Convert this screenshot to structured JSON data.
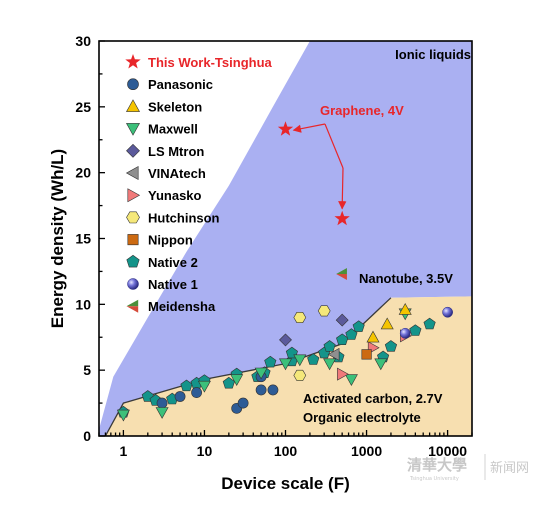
{
  "chart_data": {
    "type": "scatter",
    "xscale": "log",
    "xlim": [
      0.5,
      20000
    ],
    "ylim": [
      0,
      30
    ],
    "xlabel": "Device scale (F)",
    "ylabel": "Energy density (Wh/L)",
    "x_ticks": [
      {
        "value": 1,
        "label": "1"
      },
      {
        "value": 10,
        "label": "10"
      },
      {
        "value": 100,
        "label": "100"
      },
      {
        "value": 1000,
        "label": "1000"
      },
      {
        "value": 10000,
        "label": "10000"
      }
    ],
    "y_ticks": [
      0,
      5,
      10,
      15,
      20,
      25,
      30
    ],
    "regions": [
      {
        "name": "Ionic liquids",
        "color": "#aab0f2",
        "points": [
          [
            0.5,
            0
          ],
          [
            0.5,
            0.5
          ],
          [
            0.75,
            4.5
          ],
          [
            2,
            9
          ],
          [
            6,
            14
          ],
          [
            20,
            19
          ],
          [
            70,
            25
          ],
          [
            200,
            30
          ],
          [
            20000,
            30
          ],
          [
            20000,
            10.6
          ],
          [
            2000,
            10.5
          ],
          [
            500,
            7
          ],
          [
            100,
            5.5
          ],
          [
            10,
            4.3
          ],
          [
            1,
            2.5
          ],
          [
            0.6,
            0
          ]
        ]
      },
      {
        "name": "Activated carbon",
        "color": "#f7dfb0",
        "points": [
          [
            0.6,
            0
          ],
          [
            1,
            2.5
          ],
          [
            10,
            4.3
          ],
          [
            100,
            5.5
          ],
          [
            500,
            7
          ],
          [
            2000,
            10.5
          ],
          [
            20000,
            10.6
          ],
          [
            20000,
            0
          ]
        ]
      }
    ],
    "series": [
      {
        "name": "This Work-Tsinghua",
        "marker": "star",
        "color": "#e8262a",
        "points": [
          [
            100,
            23.3
          ],
          [
            500,
            16.5
          ]
        ]
      },
      {
        "name": "Panasonic",
        "marker": "circle",
        "color": "#2e5c96",
        "points": [
          [
            3,
            2.5
          ],
          [
            5,
            3
          ],
          [
            8,
            3.3
          ],
          [
            25,
            2.1
          ],
          [
            30,
            2.5
          ],
          [
            50,
            3.5
          ],
          [
            50,
            4.5
          ],
          [
            70,
            3.5
          ]
        ]
      },
      {
        "name": "Skeleton",
        "marker": "triangle-up",
        "color": "#f5c400",
        "points": [
          [
            1200,
            7.5
          ],
          [
            1800,
            8.5
          ],
          [
            3000,
            9.6
          ]
        ]
      },
      {
        "name": "Maxwell",
        "marker": "triangle-down",
        "color": "#3cc07a",
        "points": [
          [
            1,
            1.6
          ],
          [
            3,
            1.8
          ],
          [
            10,
            3.8
          ],
          [
            25,
            4.3
          ],
          [
            50,
            4.8
          ],
          [
            100,
            5.5
          ],
          [
            150,
            5.8
          ],
          [
            350,
            5.5
          ],
          [
            650,
            4.3
          ],
          [
            1500,
            5.5
          ],
          [
            3000,
            9.3
          ]
        ]
      },
      {
        "name": "LS Mtron",
        "marker": "diamond",
        "color": "#5b5a9b",
        "points": [
          [
            100,
            7.3
          ],
          [
            500,
            8.8
          ]
        ]
      },
      {
        "name": "VINAtech",
        "marker": "triangle-left",
        "color": "#8f8f8f",
        "points": [
          [
            400,
            6.2
          ]
        ]
      },
      {
        "name": "Yunasko",
        "marker": "triangle-right",
        "color": "#f07a7a",
        "points": [
          [
            500,
            4.7
          ],
          [
            1200,
            6.7
          ],
          [
            3000,
            7.6
          ]
        ]
      },
      {
        "name": "Hutchinson",
        "marker": "hexagon",
        "color": "#f5e87a",
        "points": [
          [
            150,
            4.6
          ],
          [
            150,
            9
          ],
          [
            300,
            9.5
          ]
        ]
      },
      {
        "name": "Nippon",
        "marker": "square",
        "color": "#cc6a12",
        "points": [
          [
            1000,
            6.2
          ]
        ]
      },
      {
        "name": "Native 2",
        "marker": "pentagon",
        "color": "#14948a",
        "points": [
          [
            1,
            1.8
          ],
          [
            2,
            3
          ],
          [
            2.5,
            2.7
          ],
          [
            4,
            2.8
          ],
          [
            6,
            3.8
          ],
          [
            8,
            4
          ],
          [
            10,
            4.2
          ],
          [
            20,
            4
          ],
          [
            25,
            4.7
          ],
          [
            45,
            4.5
          ],
          [
            55,
            4.8
          ],
          [
            65,
            5.6
          ],
          [
            120,
            5.7
          ],
          [
            120,
            6.3
          ],
          [
            220,
            5.8
          ],
          [
            300,
            6.3
          ],
          [
            350,
            6.8
          ],
          [
            450,
            6
          ],
          [
            500,
            7.3
          ],
          [
            650,
            7.7
          ],
          [
            800,
            8.3
          ],
          [
            1600,
            6
          ],
          [
            2000,
            6.8
          ],
          [
            4000,
            8
          ],
          [
            6000,
            8.5
          ]
        ]
      },
      {
        "name": "Native 1",
        "marker": "sphere",
        "color": "#5858c8",
        "points": [
          [
            3000,
            7.8
          ],
          [
            10000,
            9.4
          ]
        ]
      },
      {
        "name": "Meidensha",
        "marker": "triangle-left-split",
        "color": "#d54b3a",
        "color2": "#4c8f3a",
        "points": [
          [
            500,
            12.3
          ]
        ]
      }
    ],
    "annotations": [
      {
        "text": "Ionic liquids",
        "color": "#000000"
      },
      {
        "text": "Graphene, 4V",
        "color": "#e8262a"
      },
      {
        "text": "Nanotube, 3.5V",
        "color": "#000000"
      },
      {
        "text": "Activated carbon, 2.7V",
        "color": "#000000"
      },
      {
        "text": "Organic electrolyte",
        "color": "#000000"
      }
    ]
  },
  "watermark": {
    "main": "清華大學",
    "sub": "Tsinghua University",
    "extra": "新闻网"
  }
}
